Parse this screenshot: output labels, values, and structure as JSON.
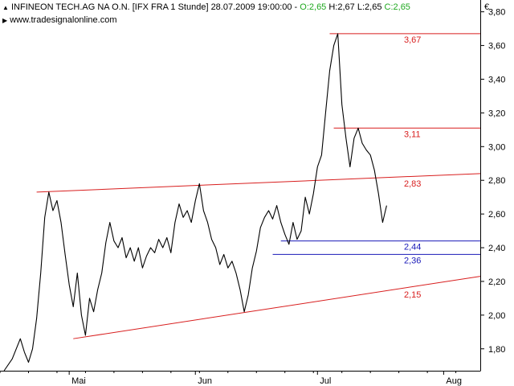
{
  "header": {
    "instrument": "INFINEON TECH.AG NA O.N. [IFX FRA  1 Stunde] 28.07.2009 19:00:00 -",
    "open": "O:2,65",
    "high": "H:2,67",
    "low": "L:2,65",
    "close": "C:2,65",
    "source": "www.tradesignalonline.com",
    "currency": "€"
  },
  "colors": {
    "price": "#000000",
    "resistance": "#d81e1e",
    "support_blue": "#1a1ab8",
    "axis": "#000000",
    "up": "#1fa81f"
  },
  "chart_data": {
    "type": "line",
    "title": "INFINEON TECH.AG NA O.N. [IFX FRA  1 Stunde]",
    "xlabel": "",
    "ylabel": "",
    "ylim": [
      1.67,
      3.87
    ],
    "yticks": [
      1.8,
      2.0,
      2.2,
      2.4,
      2.6,
      2.8,
      3.0,
      3.2,
      3.4,
      3.6,
      3.8
    ],
    "ytick_labels": [
      "1,80",
      "2,00",
      "2,20",
      "2,40",
      "2,60",
      "2,80",
      "3,00",
      "3,20",
      "3,40",
      "3,60",
      "3,80"
    ],
    "xdomain": [
      "2009-04-14",
      "2009-08-10"
    ],
    "xticks": [
      "2009-05-01",
      "2009-06-01",
      "2009-07-01",
      "2009-08-01"
    ],
    "xtick_labels": [
      "Mai",
      "Jun",
      "Jul",
      "Aug"
    ],
    "grid": false,
    "series": [
      {
        "points": [
          [
            "2009-04-15",
            1.67
          ],
          [
            "2009-04-17",
            1.74
          ],
          [
            "2009-04-19",
            1.86
          ],
          [
            "2009-04-20",
            1.78
          ],
          [
            "2009-04-21",
            1.72
          ],
          [
            "2009-04-22",
            1.8
          ],
          [
            "2009-04-23",
            1.98
          ],
          [
            "2009-04-24",
            2.25
          ],
          [
            "2009-04-25",
            2.58
          ],
          [
            "2009-04-26",
            2.73
          ],
          [
            "2009-04-27",
            2.62
          ],
          [
            "2009-04-28",
            2.68
          ],
          [
            "2009-04-29",
            2.55
          ],
          [
            "2009-04-30",
            2.36
          ],
          [
            "2009-05-01",
            2.18
          ],
          [
            "2009-05-02",
            2.05
          ],
          [
            "2009-05-03",
            2.25
          ],
          [
            "2009-05-04",
            2.0
          ],
          [
            "2009-05-05",
            1.88
          ],
          [
            "2009-05-06",
            2.1
          ],
          [
            "2009-05-07",
            2.02
          ],
          [
            "2009-05-08",
            2.15
          ],
          [
            "2009-05-09",
            2.25
          ],
          [
            "2009-05-10",
            2.43
          ],
          [
            "2009-05-11",
            2.55
          ],
          [
            "2009-05-12",
            2.44
          ],
          [
            "2009-05-13",
            2.4
          ],
          [
            "2009-05-14",
            2.46
          ],
          [
            "2009-05-15",
            2.34
          ],
          [
            "2009-05-16",
            2.4
          ],
          [
            "2009-05-17",
            2.32
          ],
          [
            "2009-05-18",
            2.4
          ],
          [
            "2009-05-19",
            2.28
          ],
          [
            "2009-05-20",
            2.35
          ],
          [
            "2009-05-21",
            2.4
          ],
          [
            "2009-05-22",
            2.37
          ],
          [
            "2009-05-23",
            2.45
          ],
          [
            "2009-05-24",
            2.4
          ],
          [
            "2009-05-25",
            2.46
          ],
          [
            "2009-05-26",
            2.37
          ],
          [
            "2009-05-27",
            2.55
          ],
          [
            "2009-05-28",
            2.66
          ],
          [
            "2009-05-29",
            2.58
          ],
          [
            "2009-05-30",
            2.62
          ],
          [
            "2009-05-31",
            2.55
          ],
          [
            "2009-06-01",
            2.68
          ],
          [
            "2009-06-02",
            2.78
          ],
          [
            "2009-06-03",
            2.62
          ],
          [
            "2009-06-04",
            2.55
          ],
          [
            "2009-06-05",
            2.45
          ],
          [
            "2009-06-06",
            2.4
          ],
          [
            "2009-06-07",
            2.3
          ],
          [
            "2009-06-08",
            2.36
          ],
          [
            "2009-06-09",
            2.28
          ],
          [
            "2009-06-10",
            2.32
          ],
          [
            "2009-06-11",
            2.25
          ],
          [
            "2009-06-12",
            2.15
          ],
          [
            "2009-06-13",
            2.02
          ],
          [
            "2009-06-14",
            2.12
          ],
          [
            "2009-06-15",
            2.28
          ],
          [
            "2009-06-16",
            2.38
          ],
          [
            "2009-06-17",
            2.52
          ],
          [
            "2009-06-18",
            2.58
          ],
          [
            "2009-06-19",
            2.62
          ],
          [
            "2009-06-20",
            2.57
          ],
          [
            "2009-06-21",
            2.65
          ],
          [
            "2009-06-22",
            2.55
          ],
          [
            "2009-06-23",
            2.48
          ],
          [
            "2009-06-24",
            2.42
          ],
          [
            "2009-06-25",
            2.55
          ],
          [
            "2009-06-26",
            2.45
          ],
          [
            "2009-06-27",
            2.5
          ],
          [
            "2009-06-28",
            2.7
          ],
          [
            "2009-06-29",
            2.6
          ],
          [
            "2009-06-30",
            2.72
          ],
          [
            "2009-07-01",
            2.88
          ],
          [
            "2009-07-02",
            2.95
          ],
          [
            "2009-07-03",
            3.2
          ],
          [
            "2009-07-04",
            3.45
          ],
          [
            "2009-07-05",
            3.6
          ],
          [
            "2009-07-06",
            3.67
          ],
          [
            "2009-07-07",
            3.25
          ],
          [
            "2009-07-08",
            3.05
          ],
          [
            "2009-07-09",
            2.88
          ],
          [
            "2009-07-10",
            3.05
          ],
          [
            "2009-07-11",
            3.11
          ],
          [
            "2009-07-12",
            3.02
          ],
          [
            "2009-07-13",
            2.98
          ],
          [
            "2009-07-14",
            2.95
          ],
          [
            "2009-07-15",
            2.86
          ],
          [
            "2009-07-16",
            2.72
          ],
          [
            "2009-07-17",
            2.55
          ],
          [
            "2009-07-18",
            2.65
          ]
        ]
      }
    ],
    "levels": [
      {
        "label": "3,67",
        "value": 3.67,
        "color": "red",
        "from": "2009-07-04"
      },
      {
        "label": "3,11",
        "value": 3.11,
        "color": "red",
        "from": "2009-07-05"
      },
      {
        "label": "2,44",
        "value": 2.44,
        "color": "blue",
        "from": "2009-06-22"
      },
      {
        "label": "2,36",
        "value": 2.36,
        "color": "blue",
        "from": "2009-06-20"
      }
    ],
    "trendlines": [
      {
        "label": "2,83",
        "from": [
          "2009-04-23",
          2.73
        ],
        "to": [
          "2009-08-10",
          2.84
        ],
        "color": "red"
      },
      {
        "label": "2,15",
        "from": [
          "2009-05-02",
          1.86
        ],
        "to": [
          "2009-08-10",
          2.23
        ],
        "color": "red"
      }
    ],
    "annotations": [
      "3,67",
      "3,11",
      "2,83",
      "2,44",
      "2,36",
      "2,15"
    ]
  }
}
